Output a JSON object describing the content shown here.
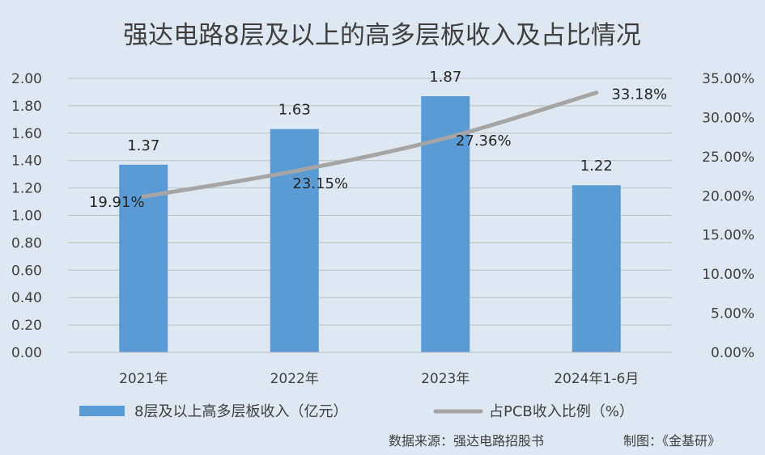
{
  "chart_data": {
    "type": "bar",
    "title": "强达电路8层及以上的高多层板收入及占比情况",
    "categories": [
      "2021年",
      "2022年",
      "2023年",
      "2024年1-6月"
    ],
    "series": [
      {
        "name": "8层及以上高多层板收入（亿元）",
        "type": "bar",
        "axis": "left",
        "values": [
          1.37,
          1.63,
          1.87,
          1.22
        ],
        "labels": [
          "1.37",
          "1.63",
          "1.87",
          "1.22"
        ],
        "color": "#5b9bd5"
      },
      {
        "name": "占PCB收入比例（%）",
        "type": "line",
        "axis": "right",
        "values": [
          19.91,
          23.15,
          27.36,
          33.18
        ],
        "labels": [
          "19.91%",
          "23.15%",
          "27.36%",
          "33.18%"
        ],
        "color": "#a5a5a5"
      }
    ],
    "y_left": {
      "range": [
        0,
        2.0
      ],
      "ticks": [
        "0.00",
        "0.20",
        "0.40",
        "0.60",
        "0.80",
        "1.00",
        "1.20",
        "1.40",
        "1.60",
        "1.80",
        "2.00"
      ]
    },
    "y_right": {
      "range": [
        0,
        35
      ],
      "ticks": [
        "0.00%",
        "5.00%",
        "10.00%",
        "15.00%",
        "20.00%",
        "25.00%",
        "30.00%",
        "35.00%"
      ]
    },
    "grid": true,
    "legend_position": "bottom"
  },
  "footer": {
    "source": "数据来源：强达电路招股书",
    "credit": "制图：《金基研》"
  }
}
